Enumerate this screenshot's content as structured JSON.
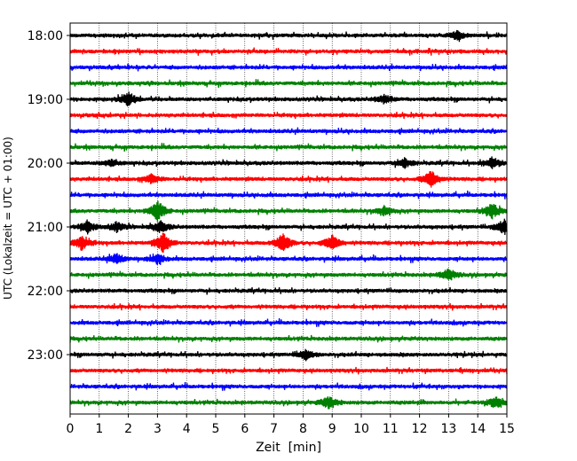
{
  "chart_data": {
    "type": "line",
    "title": "",
    "xlabel": "Zeit  [min]",
    "ylabel": "UTC (Lokalzeit = UTC + 01:00)",
    "xlim": [
      0,
      15
    ],
    "x_ticks": [
      0,
      1,
      2,
      3,
      4,
      5,
      6,
      7,
      8,
      9,
      10,
      11,
      12,
      13,
      14,
      15
    ],
    "y_tick_labels": [
      "18:00",
      "19:00",
      "20:00",
      "21:00",
      "22:00",
      "23:00"
    ],
    "row_start_times": [
      "18:00",
      "18:15",
      "18:30",
      "18:45",
      "19:00",
      "19:15",
      "19:30",
      "19:45",
      "20:00",
      "20:15",
      "20:30",
      "20:45",
      "21:00",
      "21:15",
      "21:30",
      "21:45",
      "22:00",
      "22:15",
      "22:30",
      "22:45",
      "23:00",
      "23:15",
      "23:30",
      "23:45"
    ],
    "minutes_per_row": 15,
    "grid_x": true,
    "colors": [
      "#000000",
      "#ff0000",
      "#0000ff",
      "#008000"
    ],
    "events": [
      {
        "row": 0,
        "minute": 13.3,
        "amp": 1.0
      },
      {
        "row": 4,
        "minute": 2.0,
        "amp": 1.8
      },
      {
        "row": 4,
        "minute": 10.8,
        "amp": 1.1
      },
      {
        "row": 8,
        "minute": 1.4,
        "amp": 0.9
      },
      {
        "row": 8,
        "minute": 11.5,
        "amp": 1.2
      },
      {
        "row": 8,
        "minute": 14.5,
        "amp": 1.5
      },
      {
        "row": 9,
        "minute": 2.8,
        "amp": 1.2
      },
      {
        "row": 9,
        "minute": 12.4,
        "amp": 2.2
      },
      {
        "row": 11,
        "minute": 3.0,
        "amp": 2.8
      },
      {
        "row": 11,
        "minute": 10.8,
        "amp": 1.2
      },
      {
        "row": 11,
        "minute": 14.5,
        "amp": 2.0
      },
      {
        "row": 12,
        "minute": 0.6,
        "amp": 1.5
      },
      {
        "row": 12,
        "minute": 1.6,
        "amp": 1.2
      },
      {
        "row": 12,
        "minute": 3.1,
        "amp": 1.5
      },
      {
        "row": 12,
        "minute": 14.9,
        "amp": 2.0
      },
      {
        "row": 13,
        "minute": 0.4,
        "amp": 2.0
      },
      {
        "row": 13,
        "minute": 3.2,
        "amp": 2.6
      },
      {
        "row": 13,
        "minute": 7.3,
        "amp": 2.5
      },
      {
        "row": 13,
        "minute": 9.0,
        "amp": 2.0
      },
      {
        "row": 14,
        "minute": 1.6,
        "amp": 1.3
      },
      {
        "row": 14,
        "minute": 3.0,
        "amp": 1.3
      },
      {
        "row": 15,
        "minute": 13.0,
        "amp": 1.5
      },
      {
        "row": 20,
        "minute": 8.1,
        "amp": 1.3
      },
      {
        "row": 23,
        "minute": 8.9,
        "amp": 1.6
      },
      {
        "row": 23,
        "minute": 14.6,
        "amp": 1.4
      }
    ]
  }
}
